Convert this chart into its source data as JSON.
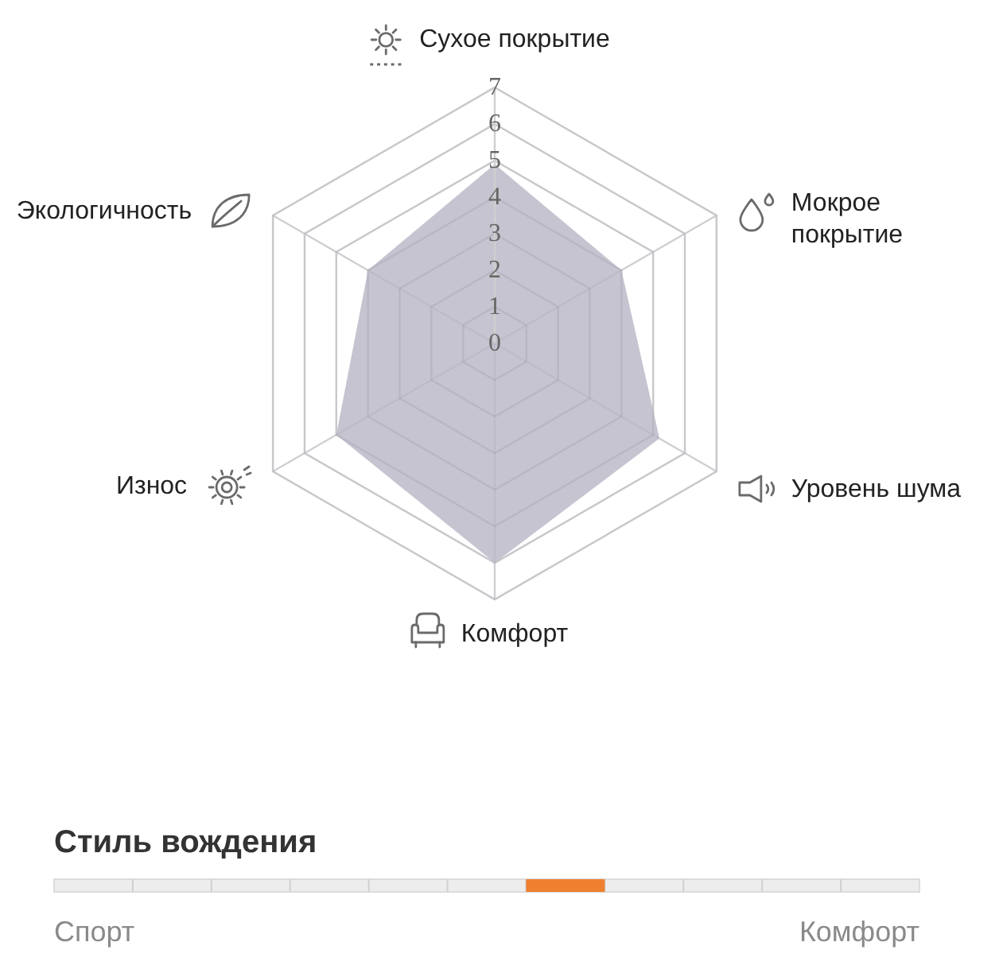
{
  "chart_data": [
    {
      "type": "radar",
      "categories": [
        "Сухое покрытие",
        "Мокрое покрытие",
        "Уровень шума",
        "Комфорт",
        "Износ",
        "Экологичность"
      ],
      "series": [
        {
          "color": "#c6c4d0",
          "values": [
            4.9,
            4.0,
            5.2,
            6.0,
            5.0,
            4.0
          ]
        }
      ],
      "ylim": [
        0,
        7
      ],
      "yticks": [
        0,
        1,
        2,
        3,
        4,
        5,
        6,
        7
      ],
      "grid": true
    },
    {
      "type": "other",
      "title": "Стиль вождения",
      "annotations": [
        "Спорт",
        "Комфорт"
      ]
    }
  ]
}
